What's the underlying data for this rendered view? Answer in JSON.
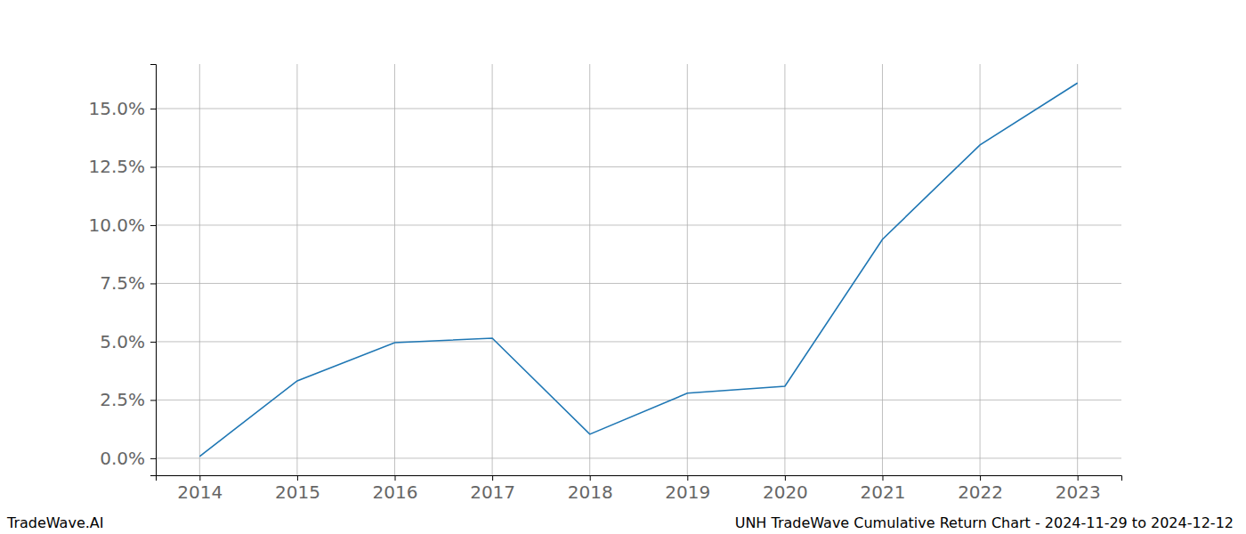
{
  "chart_data": {
    "type": "line",
    "title": "UNH TradeWave Cumulative Return Chart - 2024-11-29 to 2024-12-12",
    "source": "TradeWave.AI",
    "x": [
      2014,
      2015,
      2016,
      2017,
      2018,
      2019,
      2020,
      2021,
      2022,
      2023
    ],
    "values": [
      0.08,
      3.32,
      4.96,
      5.15,
      1.03,
      2.79,
      3.09,
      9.39,
      13.44,
      16.1
    ],
    "color": "#1f77b4",
    "xlim": [
      2013.55,
      2023.45
    ],
    "xticks": [
      2014,
      2015,
      2016,
      2017,
      2018,
      2019,
      2020,
      2021,
      2022,
      2023
    ],
    "ylim": [
      -0.73,
      16.91
    ],
    "yticks": [
      {
        "value": 0,
        "label": "0.0%"
      },
      {
        "value": 2.5,
        "label": "2.5%"
      },
      {
        "value": 5,
        "label": "5.0%"
      },
      {
        "value": 7.5,
        "label": "7.5%"
      },
      {
        "value": 10,
        "label": "10.0%"
      },
      {
        "value": 12.5,
        "label": "12.5%"
      },
      {
        "value": 15,
        "label": "15.0%"
      }
    ],
    "grid": true
  }
}
